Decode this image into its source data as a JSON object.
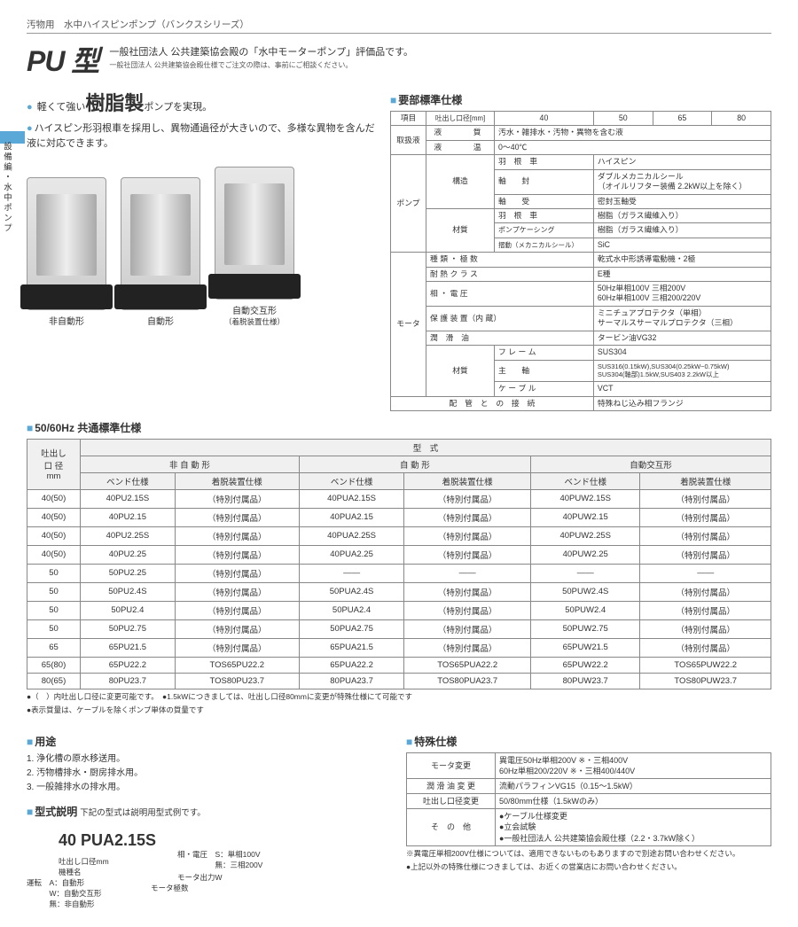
{
  "breadcrumb": "汚物用　水中ハイスピンポンプ（バンクスシリーズ）",
  "title": "PU 型",
  "subtitle1": "一般社団法人 公共建築協会殿の「水中モーターポンプ」評価品です。",
  "subtitle2": "一般社団法人 公共建築協会殿仕様でご注文の際は、事前にご相談ください。",
  "side_tab": "設備編・水中ポンプ",
  "bullets": {
    "b1a": "軽くて強い",
    "b1b": "樹脂製",
    "b1c": "ポンプを実現。",
    "b2": "ハイスピン形羽根車を採用し、異物通過径が大きいので、多様な異物を含んだ液に対応できます。"
  },
  "products": [
    {
      "label": "非自動形",
      "sub": ""
    },
    {
      "label": "自動形",
      "sub": ""
    },
    {
      "label": "自動交互形",
      "sub": "（着脱装置仕様）"
    }
  ],
  "spec_head": "要部標準仕様",
  "spec_header_row": [
    "項目",
    "吐出し口径[mm]",
    "40",
    "50",
    "65",
    "80"
  ],
  "spec": [
    [
      "取扱液",
      "液　　質",
      "汚水・雑排水・汚物・異物を含む液"
    ],
    [
      "",
      "液　　温",
      "0～40℃"
    ],
    [
      "ポンプ",
      "構造",
      "羽　根　車",
      "ハイスピン"
    ],
    [
      "",
      "",
      "軸　　封",
      "ダブルメカニカルシール\n（オイルリフター装備 2.2kW以上を除く）"
    ],
    [
      "",
      "",
      "軸　　受",
      "密封玉軸受"
    ],
    [
      "",
      "材質",
      "羽　根　車",
      "樹脂（ガラス繊維入り）"
    ],
    [
      "",
      "",
      "ポンプケーシング",
      "樹脂（ガラス繊維入り）"
    ],
    [
      "",
      "",
      "摺動（メカニカルシール）",
      "SiC"
    ],
    [
      "モータ",
      "種 類 ・ 極 数",
      "乾式水中形誘導電動機・2極"
    ],
    [
      "",
      "耐 熱 ク ラ ス",
      "E種"
    ],
    [
      "",
      "相 ・ 電 圧",
      "50Hz単相100V 三相200V\n60Hz単相100V 三相200/220V"
    ],
    [
      "",
      "保 護 装 置（内 蔵）",
      "ミニチュアプロテクタ（単相）\nサーマルスサーマルプロテクタ（三相）"
    ],
    [
      "",
      "潤　滑　油",
      "タービン油VG32"
    ],
    [
      "",
      "材質",
      "フ レ ー ム",
      "SUS304"
    ],
    [
      "",
      "",
      "主　　軸",
      "SUS316(0.15kW),SUS304(0.25kW~0.75kW)\nSUS304(軸部)1.5kW,SUS403 2.2kW以上"
    ],
    [
      "",
      "",
      "ケ ー ブ ル",
      "VCT"
    ],
    [
      "配　管　と　の　接　続",
      "特殊ねじ込み相フランジ"
    ]
  ],
  "common_head": "50/60Hz 共通標準仕様",
  "model_headers": {
    "c0": "吐出し\n口 径\nmm",
    "top": "型　式",
    "groups": [
      "非 自 動 形",
      "自 動 形",
      "自動交互形"
    ],
    "sub": [
      "ベンド仕様",
      "着脱装置仕様",
      "ベンド仕様",
      "着脱装置仕様",
      "ベンド仕様",
      "着脱装置仕様"
    ]
  },
  "model_rows": [
    [
      "40(50)",
      "40PU2.15S",
      "（特別付属品）",
      "40PUA2.15S",
      "（特別付属品）",
      "40PUW2.15S",
      "（特別付属品）"
    ],
    [
      "40(50)",
      "40PU2.15",
      "（特別付属品）",
      "40PUA2.15",
      "（特別付属品）",
      "40PUW2.15",
      "（特別付属品）"
    ],
    [
      "40(50)",
      "40PU2.25S",
      "（特別付属品）",
      "40PUA2.25S",
      "（特別付属品）",
      "40PUW2.25S",
      "（特別付属品）"
    ],
    [
      "40(50)",
      "40PU2.25",
      "（特別付属品）",
      "40PUA2.25",
      "（特別付属品）",
      "40PUW2.25",
      "（特別付属品）"
    ],
    [
      "50",
      "50PU2.25",
      "（特別付属品）",
      "——",
      "——",
      "——",
      "——"
    ],
    [
      "50",
      "50PU2.4S",
      "（特別付属品）",
      "50PUA2.4S",
      "（特別付属品）",
      "50PUW2.4S",
      "（特別付属品）"
    ],
    [
      "50",
      "50PU2.4",
      "（特別付属品）",
      "50PUA2.4",
      "（特別付属品）",
      "50PUW2.4",
      "（特別付属品）"
    ],
    [
      "50",
      "50PU2.75",
      "（特別付属品）",
      "50PUA2.75",
      "（特別付属品）",
      "50PUW2.75",
      "（特別付属品）"
    ],
    [
      "65",
      "65PU21.5",
      "（特別付属品）",
      "65PUA21.5",
      "（特別付属品）",
      "65PUW21.5",
      "（特別付属品）"
    ],
    [
      "65(80)",
      "65PU22.2",
      "TOS65PU22.2",
      "65PUA22.2",
      "TOS65PUA22.2",
      "65PUW22.2",
      "TOS65PUW22.2"
    ],
    [
      "80(65)",
      "80PU23.7",
      "TOS80PU23.7",
      "80PUA23.7",
      "TOS80PUA23.7",
      "80PUW23.7",
      "TOS80PUW23.7"
    ]
  ],
  "model_notes": [
    "●（　）内吐出し口径に変更可能です。　●1.5kWにつきましては、吐出し口径80mmに変更が特殊仕様にて可能です",
    "●表示質量は、ケーブルを除くポンプ単体の質量です"
  ],
  "uses_head": "用途",
  "uses": [
    "1. 浄化槽の原水移送用。",
    "2. 汚物槽排水・厨房排水用。",
    "3. 一般雑排水の排水用。"
  ],
  "model_expl_head": "型式説明",
  "model_expl_note": "下記の型式は説明用型式例です。",
  "model_code": "40 PUA2.15S",
  "model_labels": {
    "port": "吐出し口径mm",
    "name": "機種名",
    "run": "運転　A：自動形\n　　　W：自動交互形\n　　　無：非自動形",
    "phase": "相・電圧　S：単相100V\n　　　　　無：三相200V",
    "out": "モータ出力W",
    "poles": "モータ極数"
  },
  "special_head": "特殊仕様",
  "special": [
    [
      "モータ変更",
      "異電圧50Hz単相200V ※・三相400V\n60Hz単相200/220V ※・三相400/440V"
    ],
    [
      "潤 滑 油 変 更",
      "流動パラフィンVG15（0.15～1.5kW）"
    ],
    [
      "吐出し口径変更",
      "50/80mm仕様（1.5kWのみ）"
    ],
    [
      "そ　の　他",
      "●ケーブル仕様変更\n●立会試験\n●一般社団法人 公共建築協会殿仕様（2.2・3.7kW除く）"
    ]
  ],
  "special_notes": [
    "※異電圧単相200V仕様については、適用できないものもありますので別途お問い合わせください。",
    "●上記以外の特殊仕様につきましては、お近くの営業店にお問い合わせください。"
  ],
  "colors": {
    "accent": "#5aa8d8"
  }
}
